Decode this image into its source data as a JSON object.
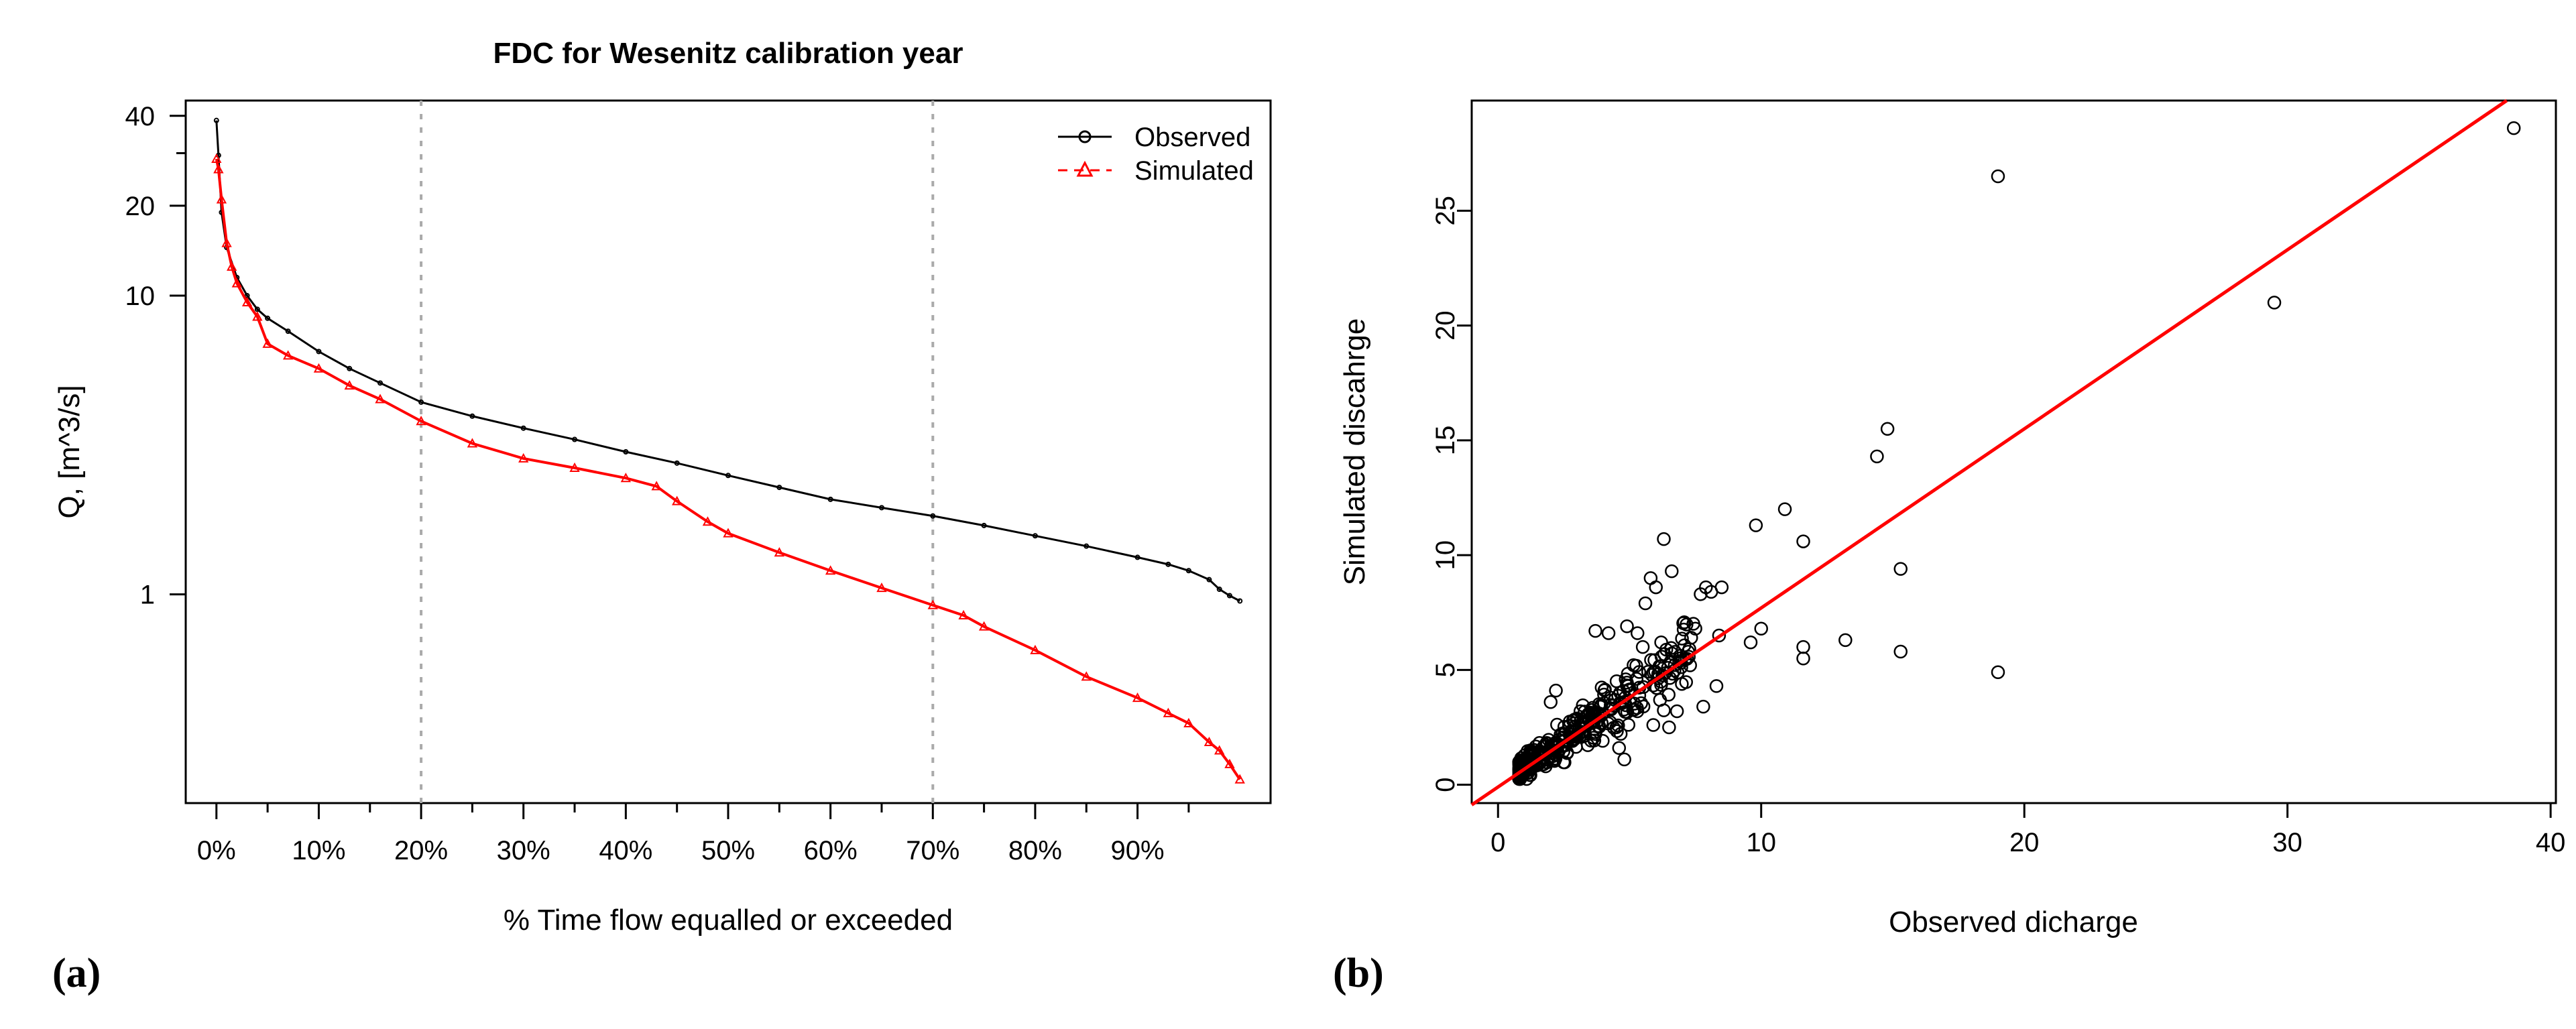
{
  "panel_labels": {
    "a": "(a)",
    "b": "(b)"
  },
  "colors": {
    "observed": "#000000",
    "simulated": "#ff0000",
    "fit_line": "#ff0000",
    "grid": "#aaaaaa"
  },
  "chart_data": [
    {
      "id": "a",
      "type": "line",
      "title": "FDC for Wesenitz calibration year",
      "xlabel": "% Time flow equalled or exceeded",
      "ylabel": "Q, [m^3/s]",
      "y_scale": "log",
      "xlim": [
        -0.03,
        1.03
      ],
      "ylim": [
        0.2,
        45
      ],
      "x_ticks": [
        0,
        0.1,
        0.2,
        0.3,
        0.4,
        0.5,
        0.6,
        0.7,
        0.8,
        0.9
      ],
      "x_tick_labels": [
        "0%",
        "10%",
        "20%",
        "30%",
        "40%",
        "50%",
        "60%",
        "70%",
        "80%",
        "90%"
      ],
      "x_minor_ticks": [
        0.05,
        0.15,
        0.25,
        0.35,
        0.45,
        0.55,
        0.65,
        0.75,
        0.85,
        0.95
      ],
      "y_ticks": [
        1,
        10,
        20,
        40
      ],
      "y_tick_labels": [
        "1",
        "10",
        "20",
        "40"
      ],
      "y_minor_ticks": [
        30
      ],
      "vlines": [
        0.2,
        0.7
      ],
      "legend_position": "top-right",
      "series": [
        {
          "name": "Observed",
          "marker": "circle",
          "points": [
            [
              0,
              38.6
            ],
            [
              0.002,
              29.5
            ],
            [
              0.005,
              19
            ],
            [
              0.01,
              14.5
            ],
            [
              0.02,
              11.5
            ],
            [
              0.03,
              10
            ],
            [
              0.04,
              9
            ],
            [
              0.05,
              8.4
            ],
            [
              0.07,
              7.6
            ],
            [
              0.1,
              6.5
            ],
            [
              0.13,
              5.7
            ],
            [
              0.16,
              5.1
            ],
            [
              0.2,
              4.4
            ],
            [
              0.25,
              3.95
            ],
            [
              0.3,
              3.6
            ],
            [
              0.35,
              3.3
            ],
            [
              0.4,
              3.0
            ],
            [
              0.45,
              2.75
            ],
            [
              0.5,
              2.5
            ],
            [
              0.55,
              2.28
            ],
            [
              0.6,
              2.08
            ],
            [
              0.65,
              1.95
            ],
            [
              0.7,
              1.83
            ],
            [
              0.75,
              1.7
            ],
            [
              0.8,
              1.57
            ],
            [
              0.85,
              1.45
            ],
            [
              0.9,
              1.33
            ],
            [
              0.93,
              1.26
            ],
            [
              0.95,
              1.2
            ],
            [
              0.97,
              1.12
            ],
            [
              0.98,
              1.04
            ],
            [
              0.99,
              0.99
            ],
            [
              1.0,
              0.95
            ]
          ]
        },
        {
          "name": "Simulated",
          "marker": "triangle",
          "points": [
            [
              0,
              28.7
            ],
            [
              0.002,
              26.5
            ],
            [
              0.005,
              21
            ],
            [
              0.01,
              15
            ],
            [
              0.015,
              12.5
            ],
            [
              0.02,
              11
            ],
            [
              0.03,
              9.5
            ],
            [
              0.04,
              8.5
            ],
            [
              0.05,
              6.9
            ],
            [
              0.07,
              6.3
            ],
            [
              0.1,
              5.7
            ],
            [
              0.13,
              5.0
            ],
            [
              0.16,
              4.5
            ],
            [
              0.2,
              3.8
            ],
            [
              0.25,
              3.2
            ],
            [
              0.3,
              2.85
            ],
            [
              0.35,
              2.65
            ],
            [
              0.4,
              2.45
            ],
            [
              0.43,
              2.3
            ],
            [
              0.45,
              2.05
            ],
            [
              0.48,
              1.75
            ],
            [
              0.5,
              1.6
            ],
            [
              0.55,
              1.38
            ],
            [
              0.6,
              1.2
            ],
            [
              0.65,
              1.05
            ],
            [
              0.7,
              0.92
            ],
            [
              0.73,
              0.85
            ],
            [
              0.75,
              0.78
            ],
            [
              0.8,
              0.65
            ],
            [
              0.85,
              0.53
            ],
            [
              0.9,
              0.45
            ],
            [
              0.93,
              0.4
            ],
            [
              0.95,
              0.37
            ],
            [
              0.97,
              0.32
            ],
            [
              0.98,
              0.3
            ],
            [
              0.99,
              0.27
            ],
            [
              1.0,
              0.24
            ]
          ]
        }
      ]
    },
    {
      "id": "b",
      "type": "scatter",
      "title": "",
      "xlabel": "Observed dicharge",
      "ylabel": "Simulated discahrge",
      "xlim": [
        -1,
        40.2
      ],
      "ylim": [
        -0.8,
        29.8
      ],
      "x_ticks": [
        0,
        10,
        20,
        30,
        40
      ],
      "y_ticks": [
        0,
        5,
        10,
        15,
        20,
        25
      ],
      "fit_line": {
        "slope": 0.78,
        "intercept": -0.1
      },
      "outliers": [
        [
          38.6,
          28.6
        ],
        [
          29.5,
          21.0
        ],
        [
          19.0,
          26.5
        ],
        [
          19.0,
          4.9
        ],
        [
          15.3,
          9.4
        ],
        [
          15.3,
          5.8
        ],
        [
          14.8,
          15.5
        ],
        [
          14.4,
          14.3
        ],
        [
          13.2,
          6.3
        ],
        [
          11.6,
          10.6
        ],
        [
          11.6,
          6.0
        ],
        [
          11.6,
          5.5
        ],
        [
          10.9,
          12.0
        ],
        [
          10.0,
          6.8
        ],
        [
          9.8,
          11.3
        ],
        [
          9.6,
          6.2
        ],
        [
          8.5,
          8.6
        ],
        [
          8.4,
          6.5
        ],
        [
          8.3,
          4.3
        ],
        [
          8.1,
          8.4
        ],
        [
          7.9,
          8.6
        ],
        [
          7.7,
          8.3
        ],
        [
          7.5,
          6.8
        ],
        [
          7.3,
          5.2
        ],
        [
          6.6,
          9.3
        ],
        [
          6.3,
          10.7
        ],
        [
          6.2,
          6.2
        ],
        [
          6.0,
          8.6
        ],
        [
          5.8,
          9.0
        ],
        [
          5.6,
          7.9
        ],
        [
          5.5,
          6.0
        ],
        [
          5.3,
          6.6
        ],
        [
          4.9,
          6.9
        ],
        [
          4.8,
          1.1
        ],
        [
          4.6,
          1.6
        ],
        [
          4.2,
          6.6
        ],
        [
          3.7,
          6.7
        ],
        [
          6.5,
          2.5
        ],
        [
          6.8,
          3.2
        ],
        [
          7.8,
          3.4
        ],
        [
          5.9,
          2.6
        ],
        [
          2.2,
          4.1
        ],
        [
          2.0,
          3.6
        ]
      ],
      "cluster": {
        "n": 370,
        "x_range": [
          0.8,
          7.5
        ],
        "slope": 0.78,
        "noise": 0.75
      }
    }
  ]
}
